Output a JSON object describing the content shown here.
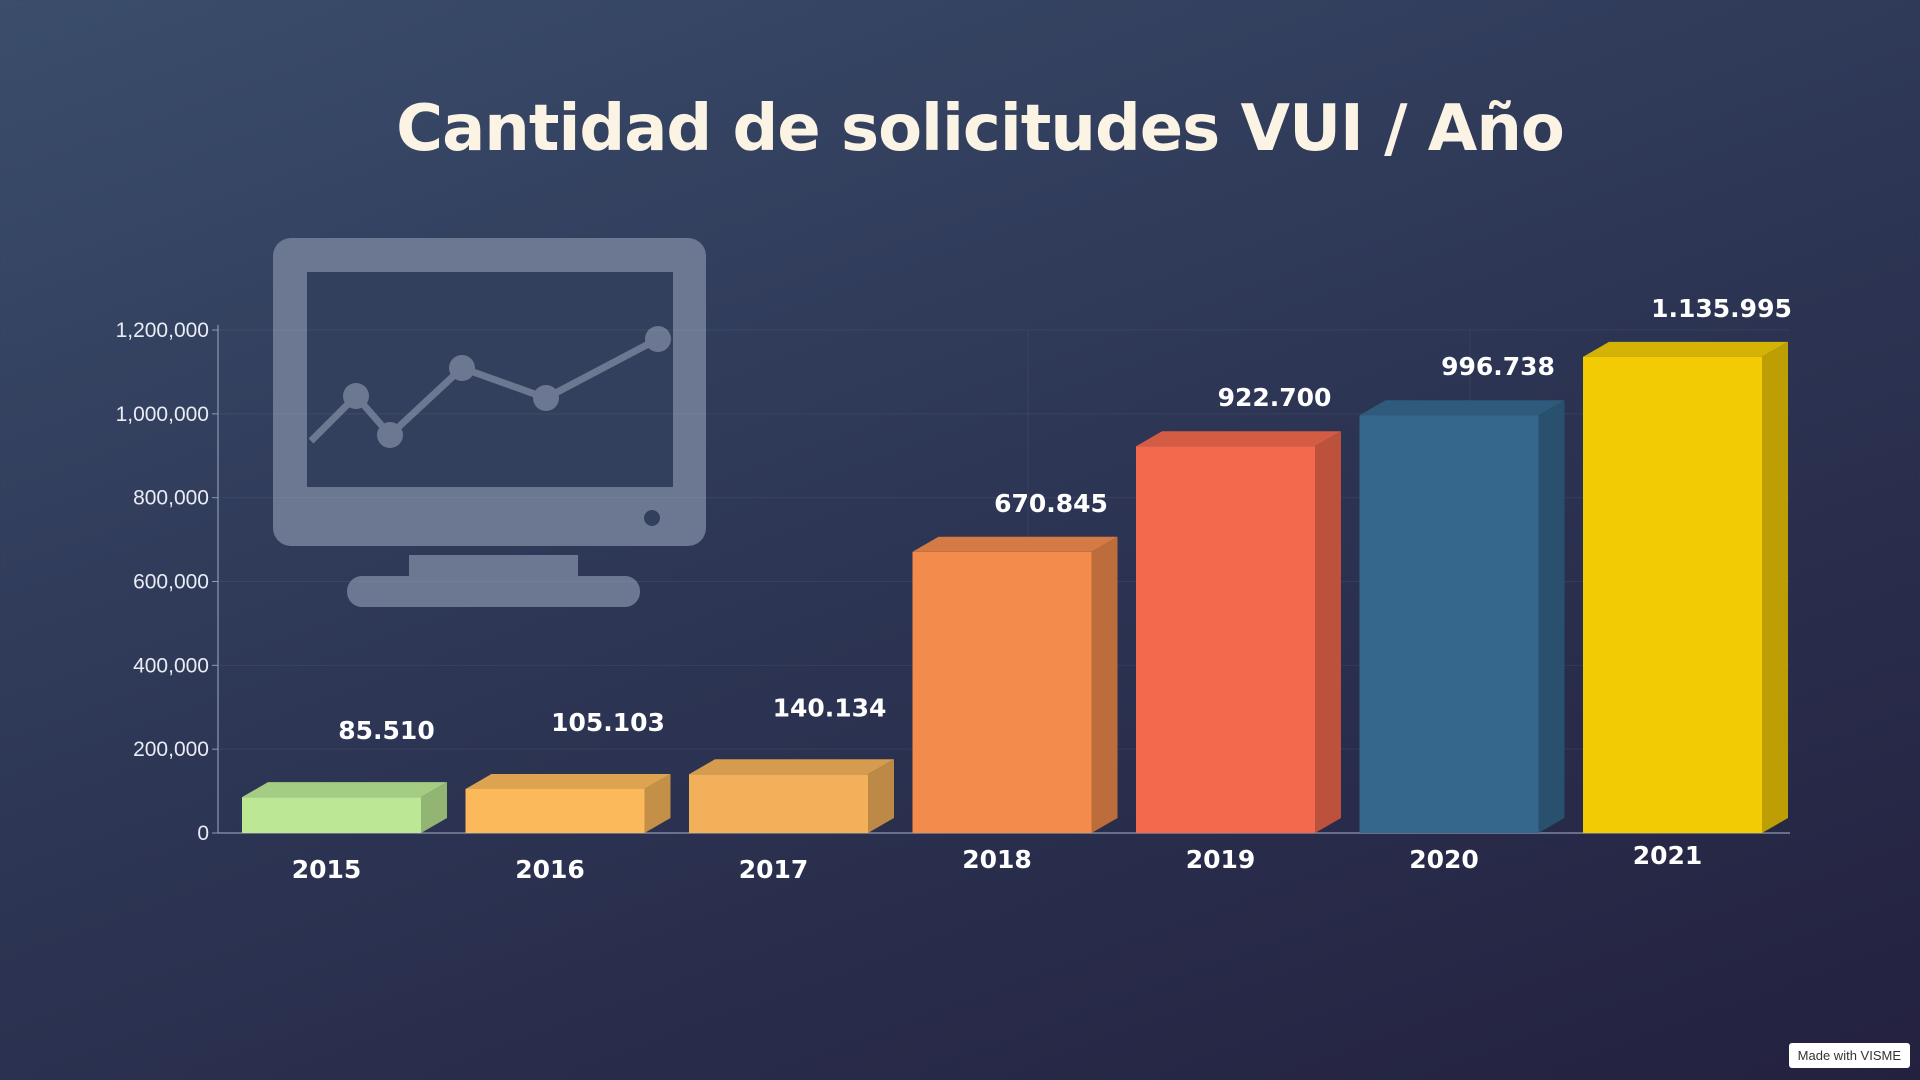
{
  "chart_data": {
    "type": "bar",
    "title": "Cantidad de solicitudes VUI / Año",
    "categories": [
      "2015",
      "2016",
      "2017",
      "2018",
      "2019",
      "2020",
      "2021"
    ],
    "values": [
      85510,
      105103,
      140134,
      670845,
      922700,
      996738,
      1135995
    ],
    "data_labels": [
      "85.510",
      "105.103",
      "140.134",
      "670.845",
      "922.700",
      "996.738",
      "1.135.995"
    ],
    "colors": [
      "#bce895",
      "#fbb95b",
      "#f2b05a",
      "#f28b4c",
      "#f2694d",
      "#35668c",
      "#f2cb05"
    ],
    "ylim": [
      0,
      1200000
    ],
    "yticks": [
      0,
      200000,
      400000,
      600000,
      800000,
      1000000,
      1200000
    ],
    "ytick_labels": [
      "0",
      "200,000",
      "400,000",
      "600,000",
      "800,000",
      "1,000,000",
      "1,200,000"
    ],
    "xlabel": "",
    "ylabel": "",
    "grid": true,
    "legend": "none",
    "style": "3d"
  },
  "decoration": {
    "icon": "monitor-line-chart-icon",
    "color": "#6c7891"
  },
  "footer": {
    "watermark": "Made with VISME"
  }
}
